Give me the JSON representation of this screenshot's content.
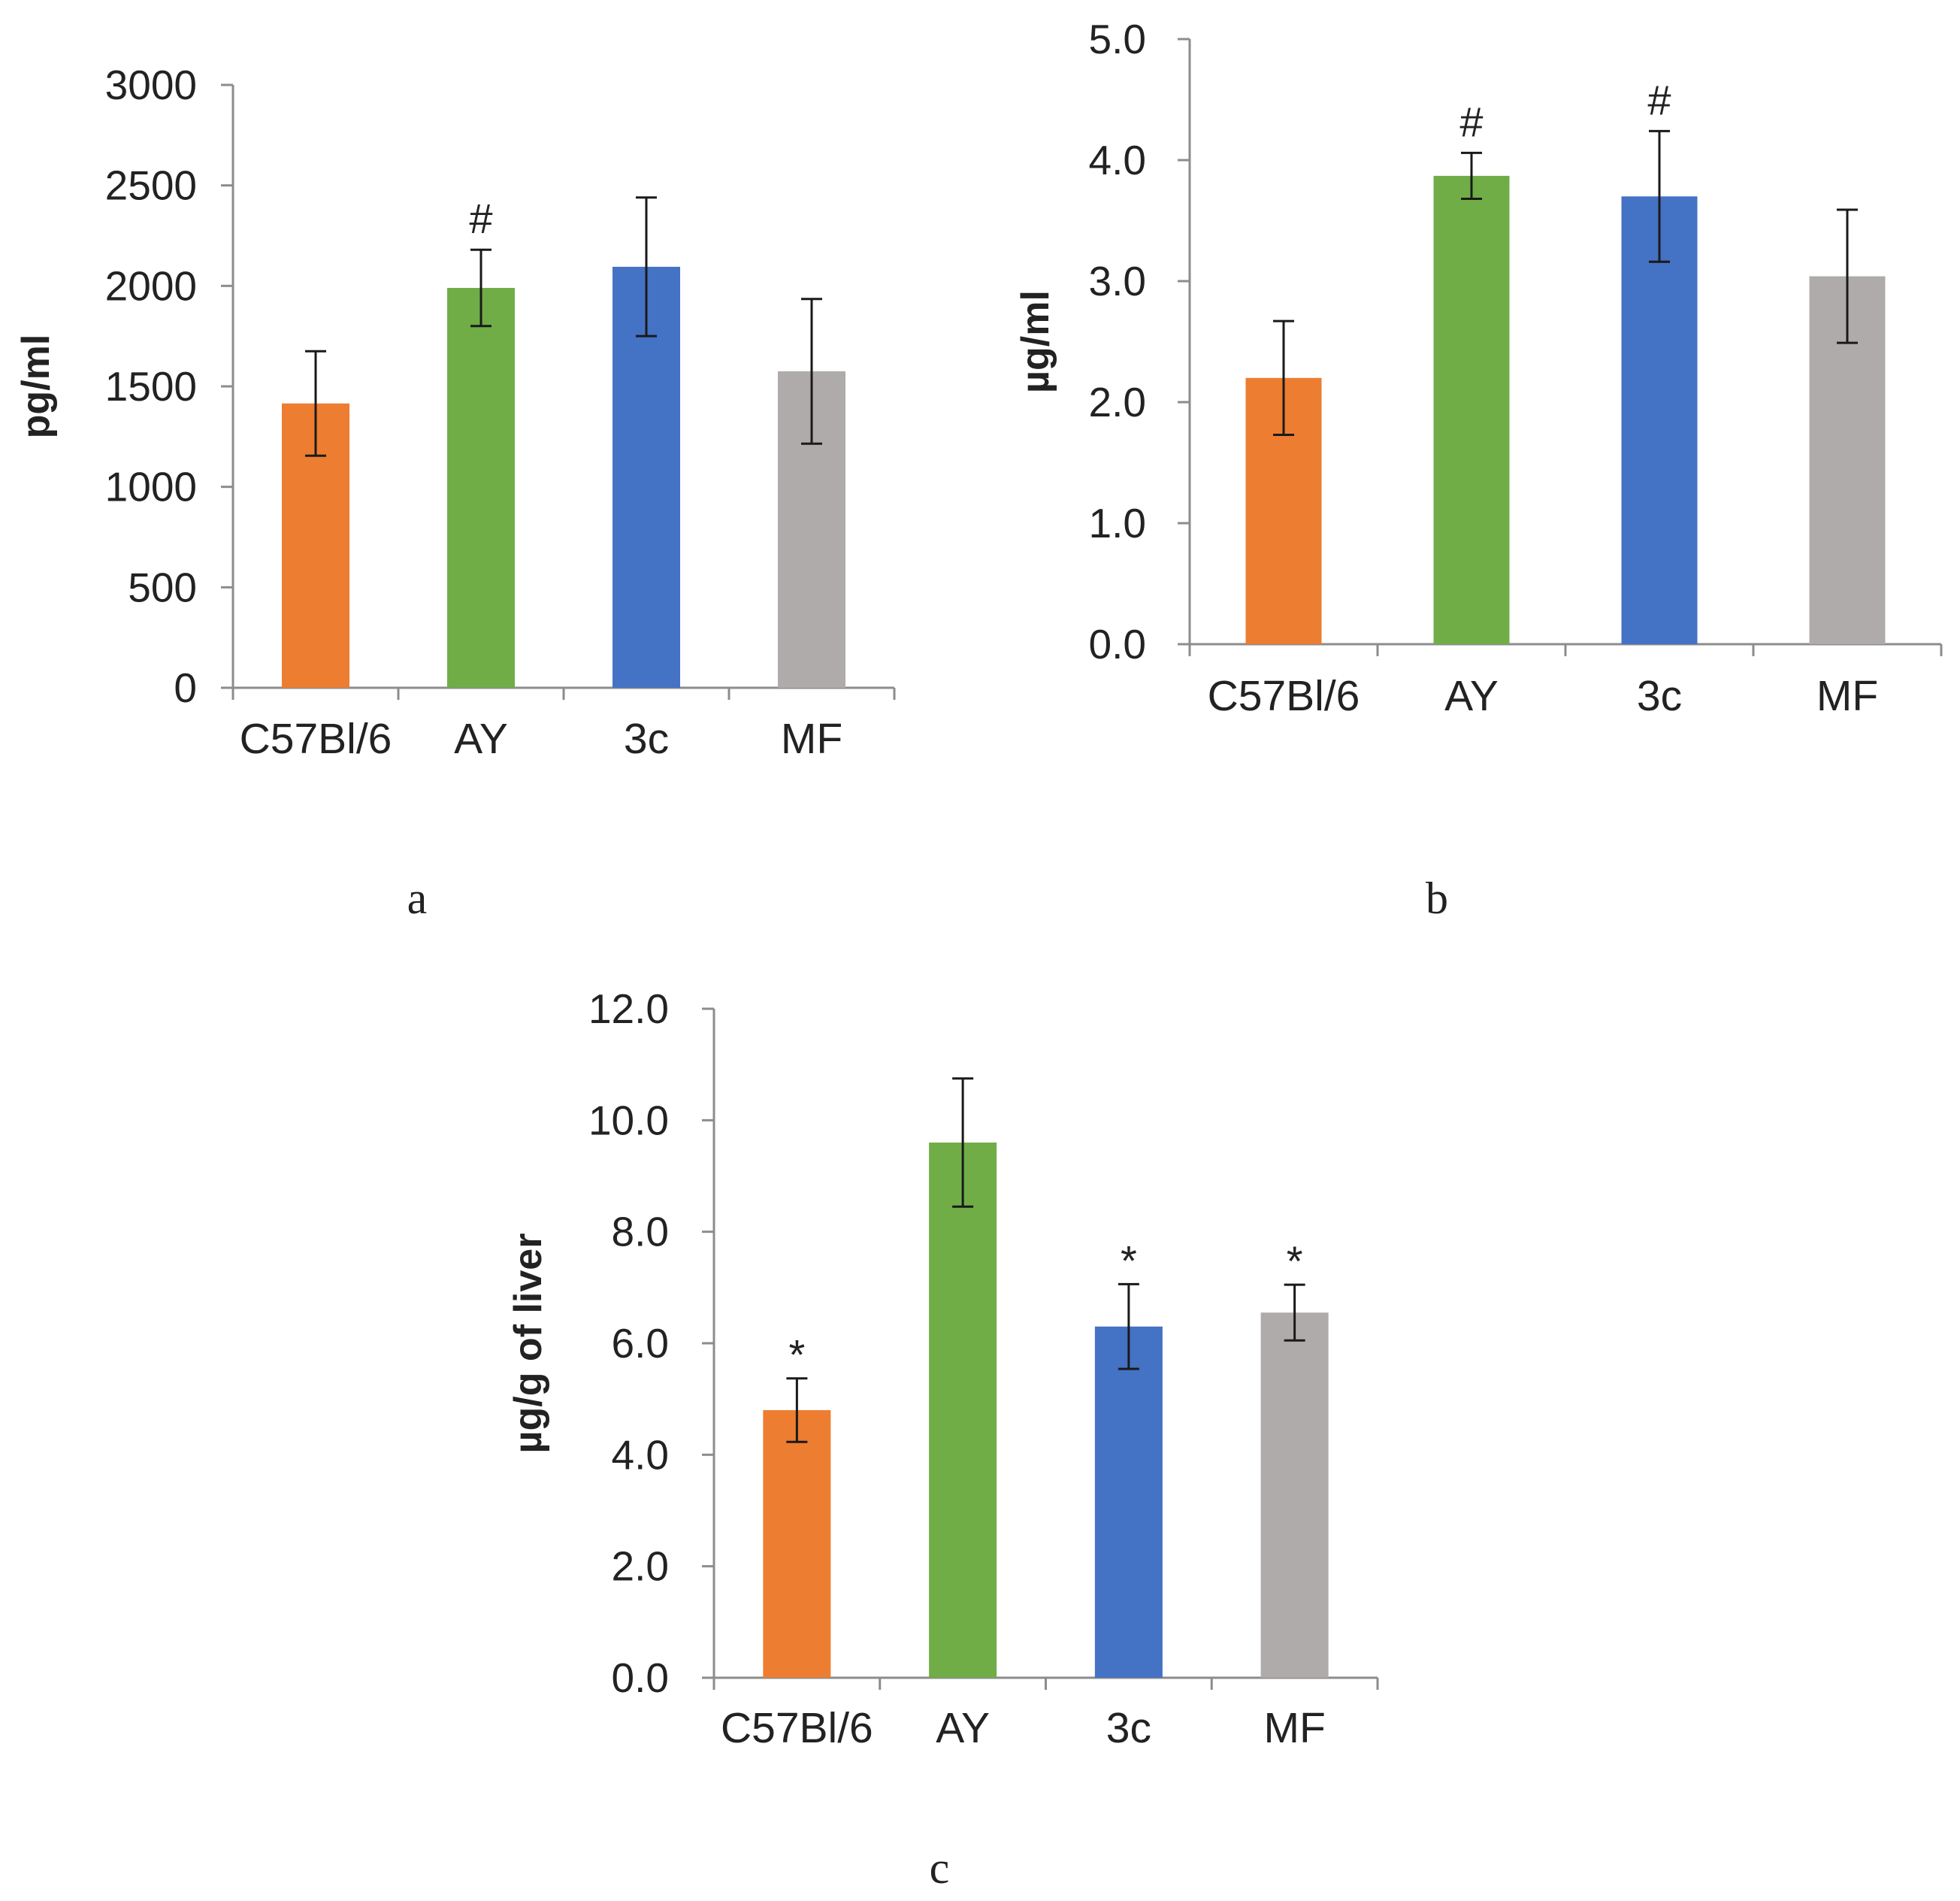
{
  "chart_data": [
    {
      "type": "bar",
      "panel_label": "a",
      "ylabel": "pg/ml",
      "xlabel": "",
      "categories": [
        "C57Bl/6",
        "AY",
        "3c",
        "MF"
      ],
      "values": [
        1415,
        1990,
        2095,
        1575
      ],
      "errors": [
        260,
        190,
        345,
        360
      ],
      "annotations": [
        "",
        "#",
        "",
        ""
      ],
      "colors": [
        "#ED7D31",
        "#70AD47",
        "#4472C4",
        "#AFABAB"
      ],
      "ylim": [
        0,
        3000
      ],
      "yticks": [
        0,
        500,
        1000,
        1500,
        2000,
        2500,
        3000
      ],
      "ytick_labels": [
        "0",
        "500",
        "1000",
        "1500",
        "2000",
        "2500",
        "3000"
      ],
      "grid": false
    },
    {
      "type": "bar",
      "panel_label": "b",
      "ylabel": "µg/ml",
      "xlabel": "",
      "categories": [
        "C57Bl/6",
        "AY",
        "3c",
        "MF"
      ],
      "values": [
        2.2,
        3.87,
        3.7,
        3.04
      ],
      "errors": [
        0.47,
        0.19,
        0.54,
        0.55
      ],
      "annotations": [
        "",
        "#",
        "#",
        ""
      ],
      "colors": [
        "#ED7D31",
        "#70AD47",
        "#4472C4",
        "#AFABAB"
      ],
      "ylim": [
        0,
        5
      ],
      "yticks": [
        0,
        1,
        2,
        3,
        4,
        5
      ],
      "ytick_labels": [
        "0.0",
        "1.0",
        "2.0",
        "3.0",
        "4.0",
        "5.0"
      ],
      "grid": false
    },
    {
      "type": "bar",
      "panel_label": "c",
      "ylabel": "µg/g of liver",
      "xlabel": "",
      "categories": [
        "C57Bl/6",
        "AY",
        "3c",
        "MF"
      ],
      "values": [
        4.8,
        9.6,
        6.3,
        6.55
      ],
      "errors": [
        0.57,
        1.15,
        0.76,
        0.5
      ],
      "annotations": [
        "*",
        "",
        "*",
        "*"
      ],
      "colors": [
        "#ED7D31",
        "#70AD47",
        "#4472C4",
        "#AFABAB"
      ],
      "ylim": [
        0,
        12
      ],
      "yticks": [
        0,
        2,
        4,
        6,
        8,
        10,
        12
      ],
      "ytick_labels": [
        "0.0",
        "2.0",
        "4.0",
        "6.0",
        "8.0",
        "10.0",
        "12.0"
      ],
      "grid": false
    }
  ]
}
